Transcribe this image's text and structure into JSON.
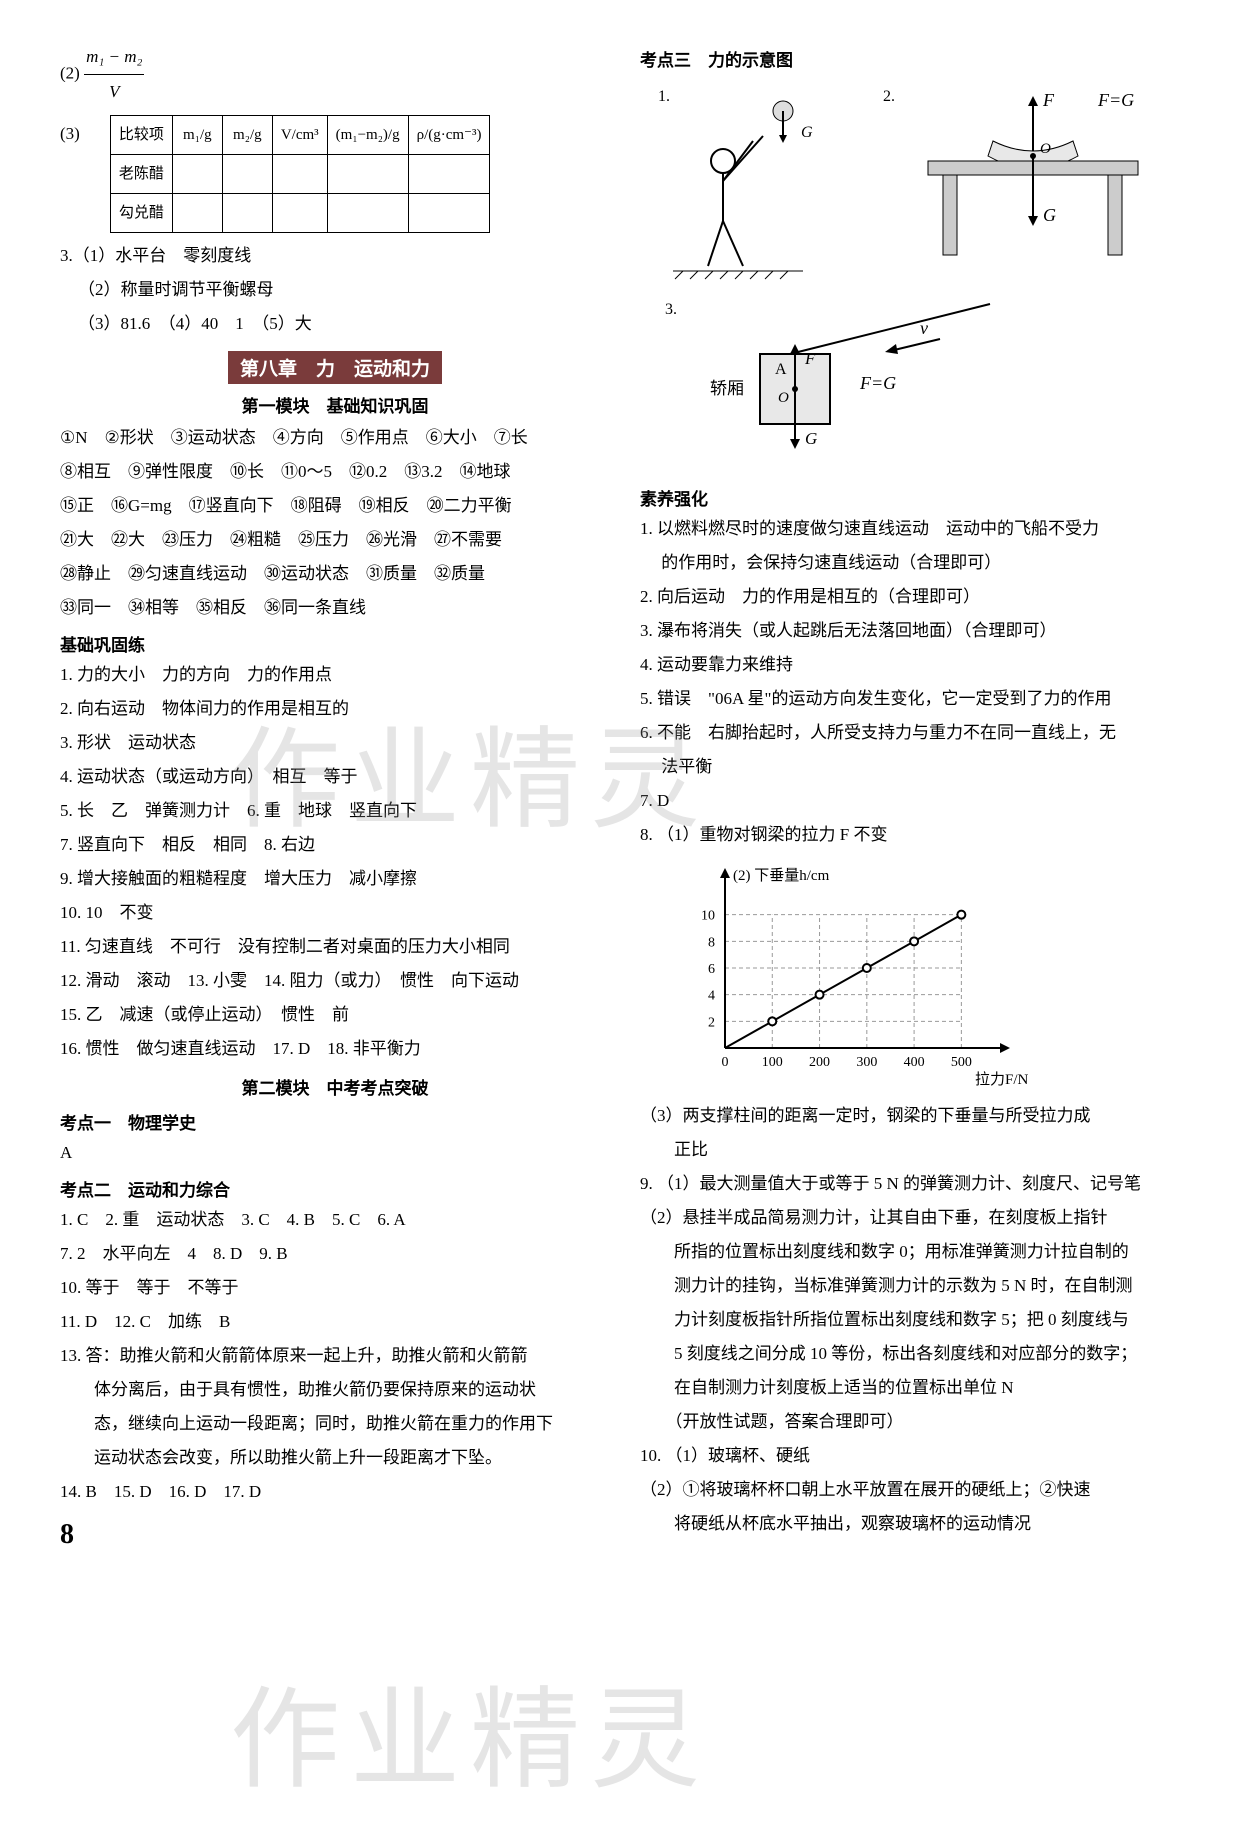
{
  "left": {
    "expr_prefix": "(2)",
    "frac_num": "m₁ − m₂",
    "frac_den": "V",
    "table_prefix": "(3)",
    "table": {
      "headers": [
        "比较项",
        "m₁/g",
        "m₂/g",
        "V/cm³",
        "(m₁−m₂)/g",
        "ρ/(g·cm⁻³)"
      ],
      "rows": [
        [
          "老陈醋",
          "",
          "",
          "",
          "",
          ""
        ],
        [
          "勾兑醋",
          "",
          "",
          "",
          "",
          ""
        ]
      ]
    },
    "q3": [
      "3.（1）水平台　零刻度线",
      "（2）称量时调节平衡螺母",
      "（3）81.6　（4）40　1　（5）大"
    ],
    "chapter": "第八章　力　运动和力",
    "module1": "第一模块　基础知识巩固",
    "blanks": [
      "①N　②形状　③运动状态　④方向　⑤作用点　⑥大小　⑦长",
      "⑧相互　⑨弹性限度　⑩长　⑪0～5　⑫0.2　⑬3.2　⑭地球",
      "⑮正　⑯G=mg　⑰竖直向下　⑱阻碍　⑲相反　⑳二力平衡",
      "㉑大　㉒大　㉓压力　㉔粗糙　㉕压力　㉖光滑　㉗不需要",
      "㉘静止　㉙匀速直线运动　㉚运动状态　㉛质量　㉜质量",
      "㉝同一　㉞相等　㉟相反　㊱同一条直线"
    ],
    "jichu_title": "基础巩固练",
    "jichu": [
      "1. 力的大小　力的方向　力的作用点",
      "2. 向右运动　物体间力的作用是相互的",
      "3. 形状　运动状态",
      "4. 运动状态（或运动方向）　相互　等于",
      "5. 长　乙　弹簧测力计　6. 重　地球　竖直向下",
      "7. 竖直向下　相反　相同　8. 右边",
      "9. 增大接触面的粗糙程度　增大压力　减小摩擦",
      "10. 10　不变",
      "11. 匀速直线　不可行　没有控制二者对桌面的压力大小相同",
      "12. 滑动　滚动　13. 小雯　14. 阻力（或力）　惯性　向下运动",
      "15. 乙　减速（或停止运动）　惯性　前",
      "16. 惯性　做匀速直线运动　17. D　18. 非平衡力"
    ],
    "module2": "第二模块　中考考点突破",
    "kd1_title": "考点一　物理学史",
    "kd1_ans": "A",
    "kd2_title": "考点二　运动和力综合",
    "kd2": [
      "1. C　2. 重　运动状态　3. C　4. B　5. C　6. A",
      "7. 2　水平向左　4　8. D　9. B",
      "10. 等于　等于　不等于",
      "11. D　12. C　加练　B",
      "13. 答：助推火箭和火箭箭体原来一起上升，助推火箭和火箭箭",
      "　　体分离后，由于具有惯性，助推火箭仍要保持原来的运动状",
      "　　态，继续向上运动一段距离；同时，助推火箭在重力的作用下",
      "　　运动状态会改变，所以助推火箭上升一段距离才下坠。",
      "14. B　15. D　16. D　17. D"
    ],
    "page_number": "8"
  },
  "right": {
    "kd3_title": "考点三　力的示意图",
    "diag1_label": "1.",
    "diag2_label": "2.",
    "diag2_text": {
      "F": "F",
      "FG": "F=G",
      "O": "O",
      "G": "G"
    },
    "diag3_label": "3.",
    "diag3_text": {
      "v": "v",
      "A": "A",
      "F": "F",
      "FG": "F=G",
      "O": "O",
      "G": "G",
      "jiaoXiang": "轿厢"
    },
    "diag1_g": "G",
    "suyang_title": "素养强化",
    "suyang": [
      "1. 以燃料燃尽时的速度做匀速直线运动　运动中的飞船不受力",
      "　 的作用时，会保持匀速直线运动（合理即可）",
      "2. 向后运动　力的作用是相互的（合理即可）",
      "3. 瀑布将消失（或人起跳后无法落回地面）（合理即可）",
      "4. 运动要靠力来维持",
      "5. 错误　\"06A 星\"的运动方向发生变化，它一定受到了力的作用",
      "6. 不能　右脚抬起时，人所受支持力与重力不在同一直线上，无",
      "　 法平衡",
      "7. D",
      "8. （1）重物对钢梁的拉力 F 不变"
    ],
    "chart": {
      "title_y": "下垂量h/cm",
      "title_x": "拉力F/N",
      "x_ticks": [
        "0",
        "100",
        "200",
        "300",
        "400",
        "500"
      ],
      "y_ticks": [
        "2",
        "4",
        "6",
        "8",
        "10"
      ],
      "points": [
        [
          100,
          2
        ],
        [
          200,
          4
        ],
        [
          300,
          6
        ],
        [
          400,
          8
        ],
        [
          500,
          10
        ]
      ],
      "xlim": [
        0,
        550
      ],
      "ylim": [
        0,
        12
      ],
      "line_color": "#000000",
      "grid_color": "#999999",
      "marker": "circle"
    },
    "after_chart": [
      "（3）两支撑柱间的距离一定时，钢梁的下垂量与所受拉力成",
      "　　正比",
      "9. （1）最大测量值大于或等于 5 N 的弹簧测力计、刻度尺、记号笔",
      "（2）悬挂半成品简易测力计，让其自由下垂，在刻度板上指针",
      "　　所指的位置标出刻度线和数字 0；用标准弹簧测力计拉自制的",
      "　　测力计的挂钩，当标准弹簧测力计的示数为 5 N 时，在自制测",
      "　　力计刻度板指针所指位置标出刻度线和数字 5；把 0 刻度线与",
      "　　5 刻度线之间分成 10 等份，标出各刻度线和对应部分的数字；",
      "　　在自制测力计刻度板上适当的位置标出单位 N",
      "　　（开放性试题，答案合理即可）",
      "10. （1）玻璃杯、硬纸",
      "（2）①将玻璃杯杯口朝上水平放置在展开的硬纸上；②快速",
      "　　将硬纸从杯底水平抽出，观察玻璃杯的运动情况"
    ]
  },
  "watermark": "作业精灵"
}
